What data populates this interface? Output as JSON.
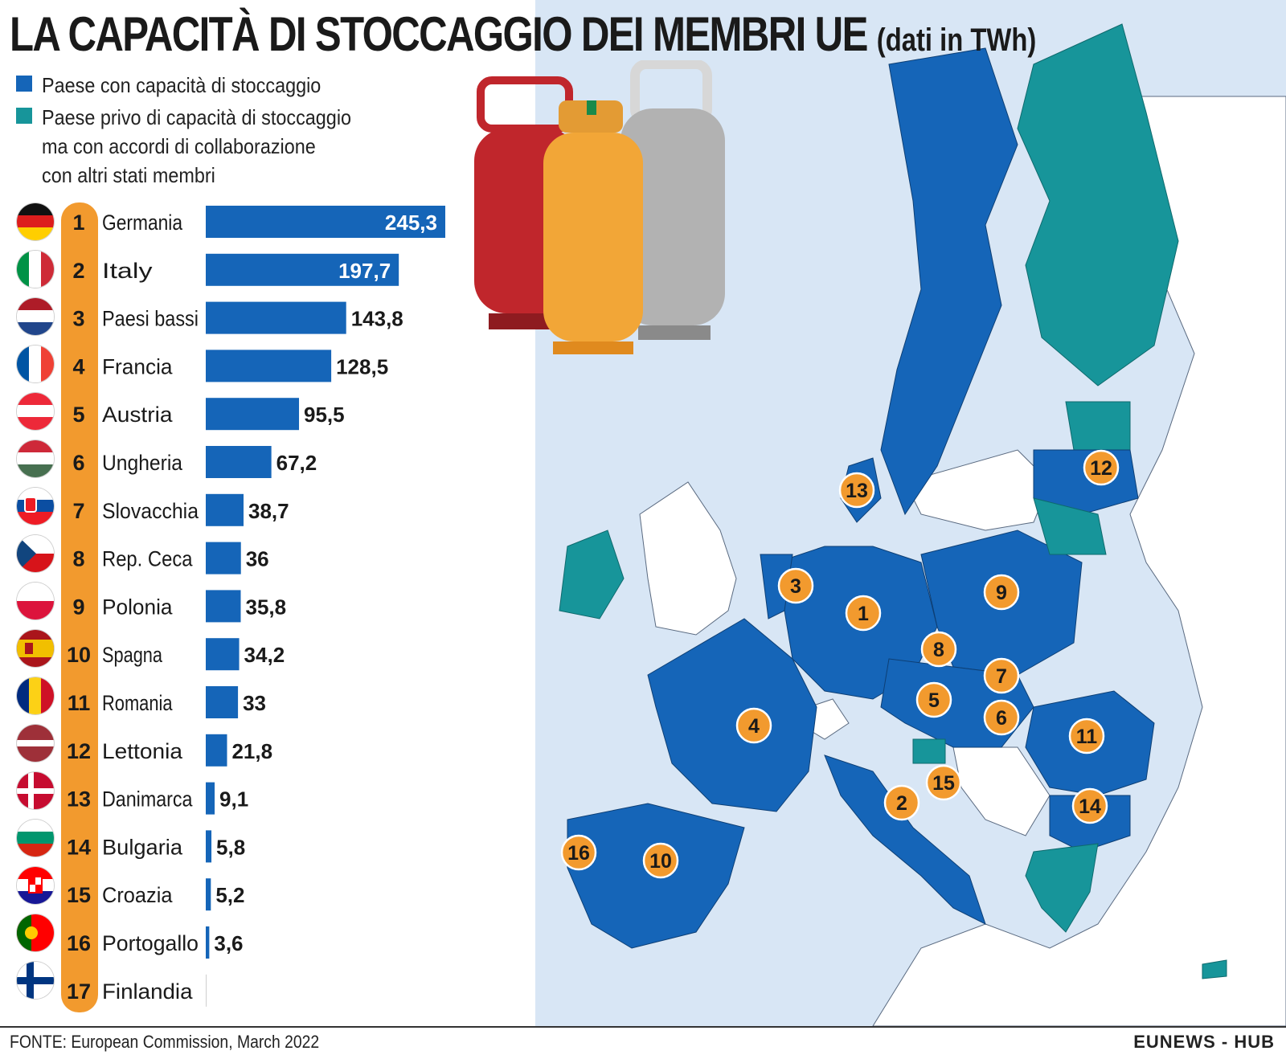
{
  "title": {
    "main": "LA CAPACITÀ DI STOCCAGGIO DEI MEMBRI UE",
    "sub": "(dati in TWh)"
  },
  "legend": {
    "storage_label": "Paese con capacità di stoccaggio",
    "nostorage_lines": [
      "Paese privo di capacità di stoccaggio",
      "ma con accordi di collaborazione",
      "con altri stati membri"
    ],
    "storage_color": "#1565b8",
    "nostorage_color": "#17959a"
  },
  "colors": {
    "bar": "#1565b8",
    "rank": "#f29a2e",
    "sea": "#d8e6f5",
    "land_other": "#ffffff"
  },
  "chart_data": {
    "type": "bar",
    "orientation": "horizontal",
    "title": "LA CAPACITÀ DI STOCCAGGIO DEI MEMBRI UE",
    "unit": "TWh",
    "categories": [
      "Germania",
      "Italy",
      "Paesi bassi",
      "Francia",
      "Austria",
      "Ungheria",
      "Slovacchia",
      "Rep. Ceca",
      "Polonia",
      "Spagna",
      "Romania",
      "Lettonia",
      "Danimarca",
      "Bulgaria",
      "Croazia",
      "Portogallo",
      "Finlandia"
    ],
    "ranks": [
      "1",
      "2",
      "3",
      "4",
      "5",
      "6",
      "7",
      "8",
      "9",
      "10",
      "11",
      "12",
      "13",
      "14",
      "15",
      "16",
      "17"
    ],
    "values": [
      245.3,
      197.7,
      143.8,
      128.5,
      95.5,
      67.2,
      38.7,
      36,
      35.8,
      34.2,
      33,
      21.8,
      9.1,
      5.8,
      5.2,
      3.6,
      0
    ],
    "value_labels": [
      "245,3",
      "197,7",
      "143,8",
      "128,5",
      "95,5",
      "67,2",
      "38,7",
      "36",
      "35,8",
      "34,2",
      "33",
      "21,8",
      "9,1",
      "5,8",
      "5,2",
      "3,6",
      ""
    ],
    "xlim": [
      0,
      245.3
    ]
  },
  "map": {
    "markers": [
      "1",
      "2",
      "3",
      "4",
      "5",
      "6",
      "7",
      "8",
      "9",
      "10",
      "11",
      "12",
      "13",
      "14",
      "15",
      "16"
    ]
  },
  "footer": {
    "source": "FONTE: European Commission, March 2022",
    "brand": "EUNEWS - HUB"
  }
}
